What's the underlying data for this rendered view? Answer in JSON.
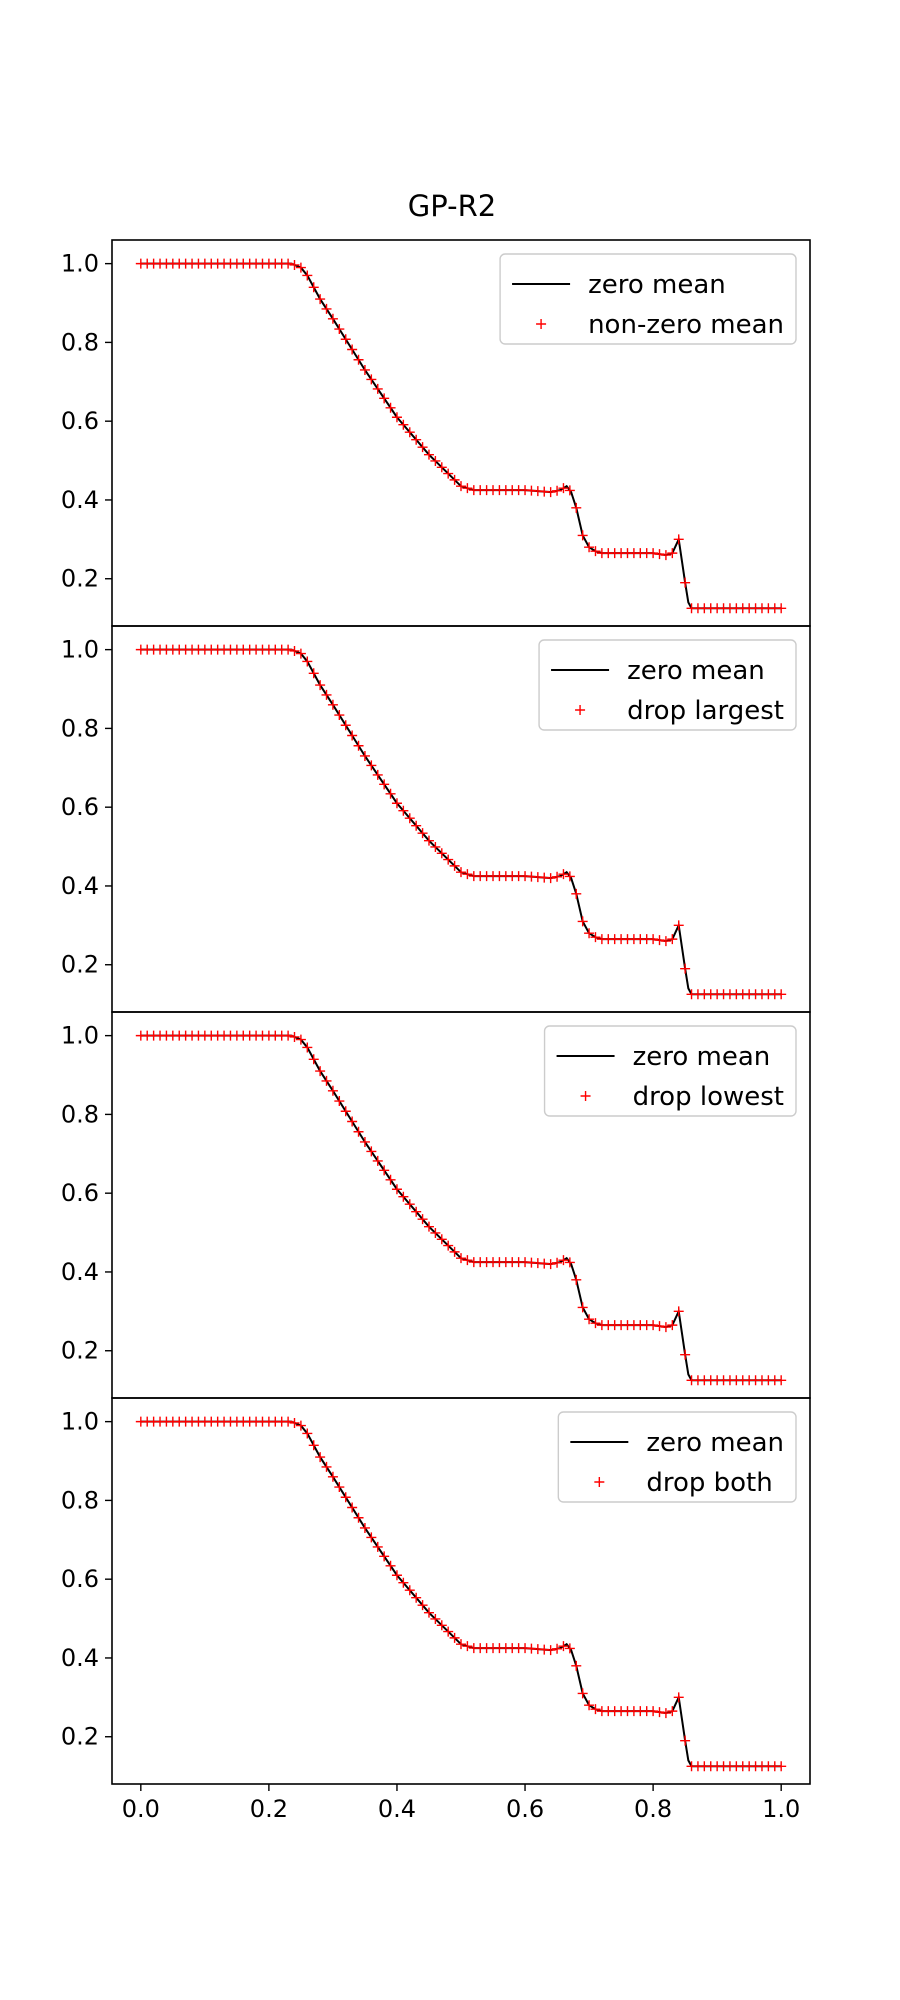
{
  "chart_data": {
    "type": "line",
    "title": "GP-R2",
    "xlim": [
      -0.045,
      1.045
    ],
    "ylim": [
      0.08,
      1.06
    ],
    "xticks": [
      "0.0",
      "0.2",
      "0.4",
      "0.6",
      "0.8",
      "1.0"
    ],
    "yticks": [
      "0.2",
      "0.4",
      "0.6",
      "0.8",
      "1.0"
    ],
    "grid": false,
    "legend_placement": "top-right",
    "reference_series": {
      "name": "zero mean",
      "color": "#000000",
      "x": [
        0.0,
        0.235,
        0.25,
        0.26,
        0.27,
        0.28,
        0.3,
        0.35,
        0.4,
        0.45,
        0.5,
        0.52,
        0.6,
        0.64,
        0.655,
        0.665,
        0.672,
        0.68,
        0.69,
        0.7,
        0.71,
        0.72,
        0.8,
        0.82,
        0.83,
        0.84,
        0.845,
        0.85,
        0.855,
        0.86,
        1.0
      ],
      "y": [
        1.0,
        1.0,
        0.99,
        0.97,
        0.94,
        0.91,
        0.86,
        0.73,
        0.61,
        0.515,
        0.435,
        0.425,
        0.425,
        0.42,
        0.425,
        0.435,
        0.42,
        0.38,
        0.31,
        0.28,
        0.27,
        0.265,
        0.265,
        0.26,
        0.265,
        0.3,
        0.245,
        0.19,
        0.14,
        0.125,
        0.125
      ]
    },
    "panels": [
      {
        "legend": [
          "zero mean",
          "non-zero mean"
        ],
        "marker_series": {
          "name": "non-zero mean",
          "color": "#ff0000"
        }
      },
      {
        "legend": [
          "zero mean",
          "drop largest"
        ],
        "marker_series": {
          "name": "drop largest",
          "color": "#ff0000"
        }
      },
      {
        "legend": [
          "zero mean",
          "drop lowest"
        ],
        "marker_series": {
          "name": "drop lowest",
          "color": "#ff0000"
        }
      },
      {
        "legend": [
          "zero mean",
          "drop both"
        ],
        "marker_series": {
          "name": "drop both",
          "color": "#ff0000"
        }
      }
    ]
  }
}
